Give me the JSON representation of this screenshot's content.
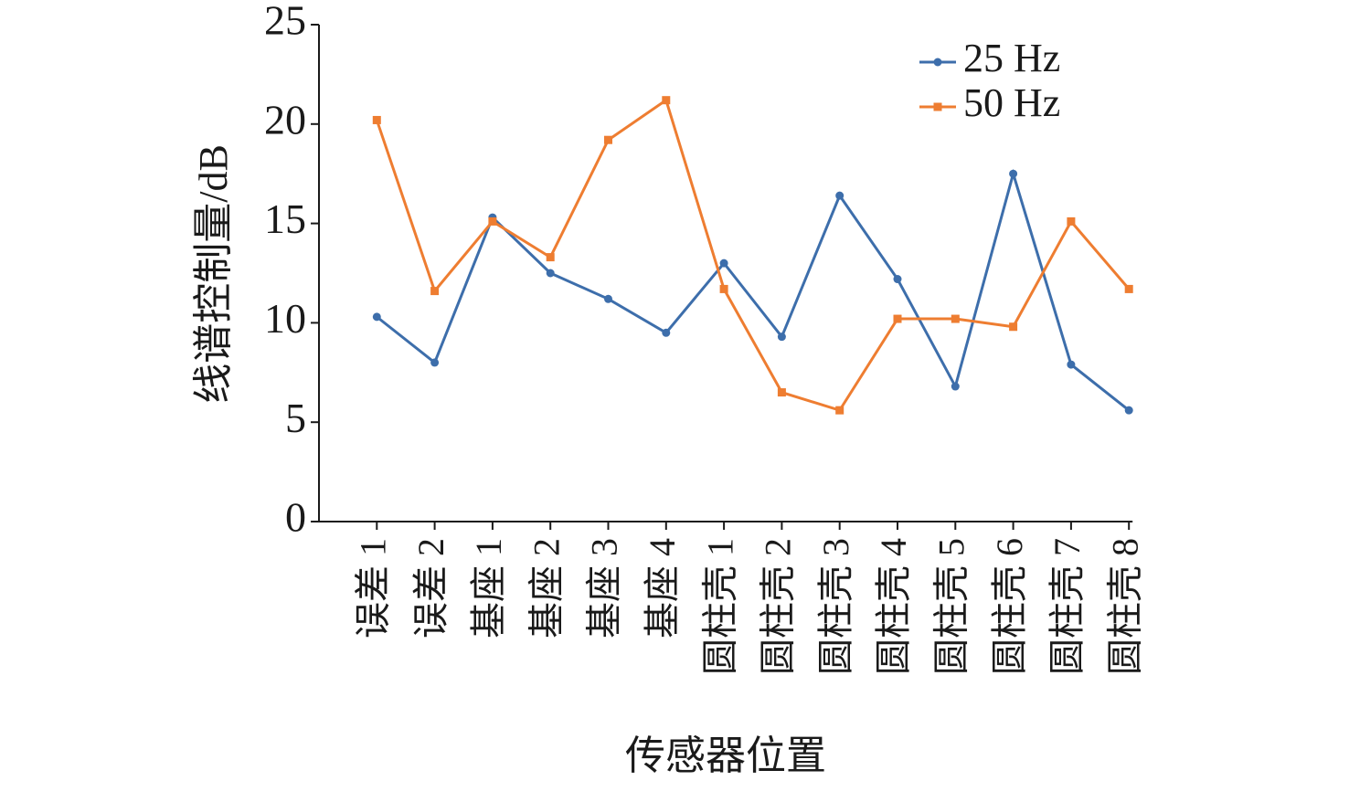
{
  "chart_data": {
    "type": "line",
    "categories": [
      "误差 1",
      "误差 2",
      "基座 1",
      "基座 2",
      "基座 3",
      "基座 4",
      "圆柱壳 1",
      "圆柱壳 2",
      "圆柱壳 3",
      "圆柱壳 4",
      "圆柱壳 5",
      "圆柱壳 6",
      "圆柱壳 7",
      "圆柱壳 8"
    ],
    "series": [
      {
        "name": "25 Hz",
        "color": "#3d6eab",
        "marker": "circle",
        "values": [
          10.3,
          8.0,
          15.3,
          12.5,
          11.2,
          9.5,
          13.0,
          9.3,
          16.4,
          12.2,
          6.8,
          17.5,
          7.9,
          5.6
        ]
      },
      {
        "name": "50 Hz",
        "color": "#ee7d31",
        "marker": "square",
        "values": [
          20.2,
          11.6,
          15.1,
          13.3,
          19.2,
          21.2,
          11.7,
          6.5,
          5.6,
          10.2,
          10.2,
          9.8,
          15.1,
          11.7
        ]
      }
    ],
    "ylim": [
      0,
      25
    ],
    "yticks": [
      0,
      5,
      10,
      15,
      20,
      25
    ],
    "xlabel": "传感器位置",
    "ylabel": "线谱控制量/dB",
    "legend": "upper-right",
    "grid": false
  }
}
